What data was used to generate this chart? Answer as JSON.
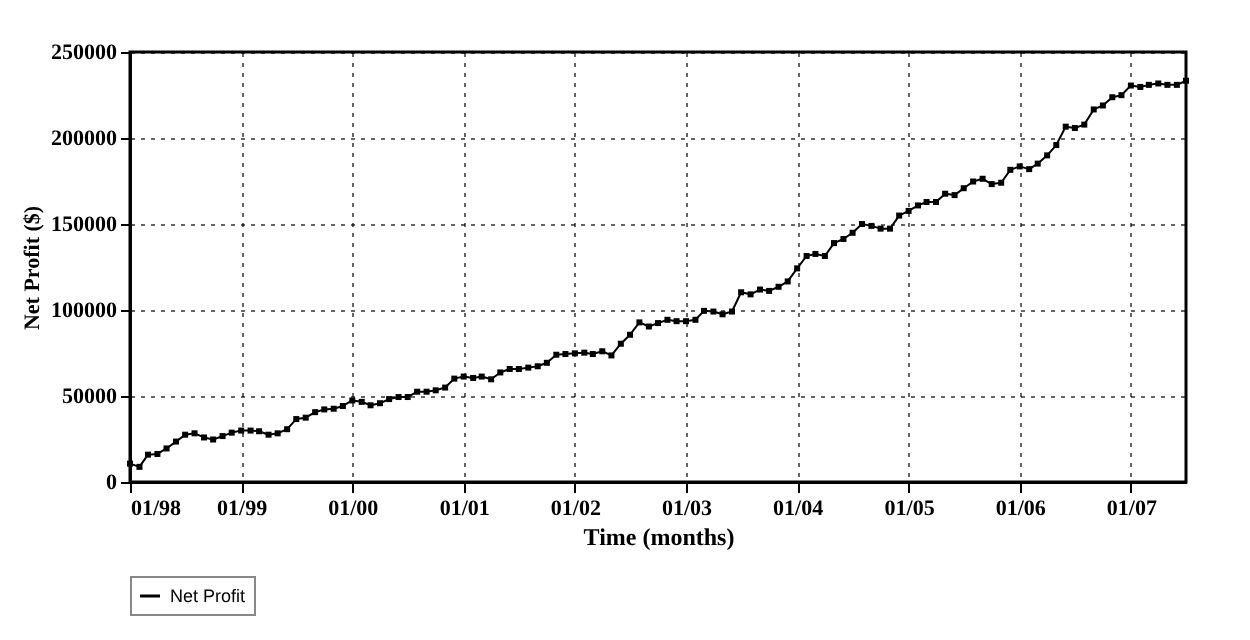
{
  "chart_data": {
    "type": "line",
    "xlabel": "Time (months)",
    "ylabel": "Net Profit ($)",
    "x": [
      "1998-01",
      "1998-02",
      "1998-03",
      "1998-04",
      "1998-05",
      "1998-06",
      "1998-07",
      "1998-08",
      "1998-09",
      "1998-10",
      "1998-11",
      "1998-12",
      "1999-01",
      "1999-02",
      "1999-03",
      "1999-04",
      "1999-05",
      "1999-06",
      "1999-07",
      "1999-08",
      "1999-09",
      "1999-10",
      "1999-11",
      "1999-12",
      "2000-01",
      "2000-02",
      "2000-03",
      "2000-04",
      "2000-05",
      "2000-06",
      "2000-07",
      "2000-08",
      "2000-09",
      "2000-10",
      "2000-11",
      "2000-12",
      "2001-01",
      "2001-02",
      "2001-03",
      "2001-04",
      "2001-05",
      "2001-06",
      "2001-07",
      "2001-08",
      "2001-09",
      "2001-10",
      "2001-11",
      "2001-12",
      "2002-01",
      "2002-02",
      "2002-03",
      "2002-04",
      "2002-05",
      "2002-06",
      "2002-07",
      "2002-08",
      "2002-09",
      "2002-10",
      "2002-11",
      "2002-12",
      "2003-01",
      "2003-02",
      "2003-03",
      "2003-04",
      "2003-05",
      "2003-06",
      "2003-07",
      "2003-08",
      "2003-09",
      "2003-10",
      "2003-11",
      "2003-12",
      "2004-01",
      "2004-02",
      "2004-03",
      "2004-04",
      "2004-05",
      "2004-06",
      "2004-07",
      "2004-08",
      "2004-09",
      "2004-10",
      "2004-11",
      "2004-12",
      "2005-01",
      "2005-02",
      "2005-03",
      "2005-04",
      "2005-05",
      "2005-06",
      "2005-07",
      "2005-08",
      "2005-09",
      "2005-10",
      "2005-11",
      "2005-12",
      "2006-01",
      "2006-02",
      "2006-03",
      "2006-04",
      "2006-05",
      "2006-06",
      "2006-07",
      "2006-08",
      "2006-09",
      "2006-10",
      "2006-11",
      "2006-12",
      "2007-01",
      "2007-02",
      "2007-03",
      "2007-04",
      "2007-05",
      "2007-06",
      "2007-07"
    ],
    "series": [
      {
        "name": "Net Profit",
        "color": "#000000",
        "values": [
          10700,
          8800,
          15900,
          16300,
          19500,
          23500,
          27500,
          28300,
          25900,
          24700,
          26700,
          28700,
          29900,
          29900,
          29500,
          27500,
          28300,
          30700,
          36600,
          37400,
          40600,
          42200,
          42600,
          44200,
          47400,
          46600,
          44600,
          45800,
          48200,
          49400,
          49400,
          52500,
          52500,
          53300,
          54900,
          60100,
          61300,
          60500,
          61300,
          59700,
          63700,
          65700,
          65700,
          66500,
          67300,
          69300,
          74000,
          74400,
          74800,
          75200,
          74400,
          76000,
          73600,
          80400,
          85600,
          92800,
          90400,
          92400,
          94300,
          93500,
          93500,
          94300,
          99500,
          99100,
          97500,
          99100,
          110300,
          109100,
          111900,
          111100,
          113500,
          116600,
          124200,
          131400,
          132600,
          131400,
          138900,
          141300,
          144900,
          150000,
          148900,
          147300,
          147300,
          154900,
          157600,
          160800,
          162800,
          162800,
          167600,
          166800,
          170800,
          174700,
          176300,
          173200,
          174000,
          181500,
          183500,
          181900,
          185100,
          189900,
          195900,
          206600,
          205800,
          207800,
          216600,
          218900,
          223700,
          224900,
          230500,
          229700,
          230900,
          231700,
          230900,
          230900,
          233300
        ]
      }
    ],
    "xlim": [
      "1998-01",
      "2007-07"
    ],
    "xticks": [
      {
        "value": "1998-01",
        "label": "01/98"
      },
      {
        "value": "1999-01",
        "label": "01/99"
      },
      {
        "value": "2000-01",
        "label": "01/00"
      },
      {
        "value": "2001-01",
        "label": "01/01"
      },
      {
        "value": "2002-01",
        "label": "01/02"
      },
      {
        "value": "2003-01",
        "label": "01/03"
      },
      {
        "value": "2004-01",
        "label": "01/04"
      },
      {
        "value": "2005-01",
        "label": "01/05"
      },
      {
        "value": "2006-01",
        "label": "01/06"
      },
      {
        "value": "2007-01",
        "label": "01/07"
      }
    ],
    "ylim": [
      0,
      250000
    ],
    "yticks": [
      0,
      50000,
      100000,
      150000,
      200000,
      250000
    ],
    "grid": true,
    "legend": "bottom",
    "marker": "square",
    "line_style": "solid"
  }
}
